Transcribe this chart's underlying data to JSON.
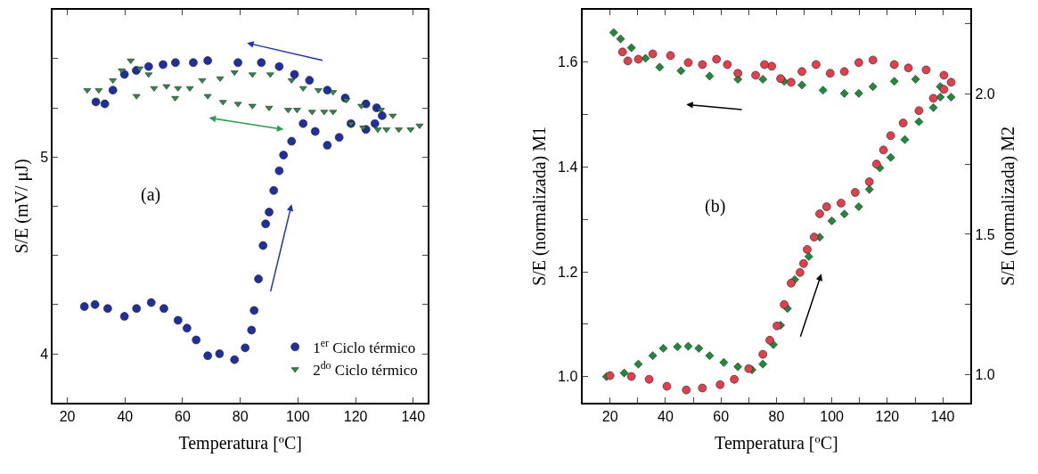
{
  "chart_data": [
    {
      "type": "scatter",
      "xlabel": "Temperatura [ºC]",
      "ylabel": "S/E (mV/ μJ)",
      "annotations": [
        "(a)"
      ],
      "xlim": [
        15,
        145
      ],
      "xticks": [
        20,
        40,
        60,
        80,
        100,
        120,
        140
      ],
      "ylim": [
        3.75,
        5.75
      ],
      "yticks": [
        {
          "value": 4,
          "label": "4"
        },
        {
          "value": 4.25,
          "label": null
        },
        {
          "value": 4.5,
          "label": null
        },
        {
          "value": 4.75,
          "label": null
        },
        {
          "value": 5,
          "label": "5"
        },
        {
          "value": 5.25,
          "label": null
        },
        {
          "value": 5.5,
          "label": null
        }
      ],
      "legend": "bottom right",
      "series": [
        {
          "name": "1$^{er}$ Ciclo térmico",
          "color": "#1f2f9f",
          "marker": "circle",
          "x": [
            25.9,
            29.6,
            34.0,
            39.8,
            44.0,
            49.1,
            53.5,
            58.4,
            61.5,
            64.7,
            68.7,
            72.8,
            78.0,
            81.7,
            83.9,
            84.8,
            86.3,
            87.9,
            88.8,
            90.0,
            91.6,
            93.5,
            95.0,
            97.8,
            101.8,
            106.0,
            110.2,
            114.3,
            118.4,
            123.6,
            126.7,
            129.2,
            127.3,
            123.6,
            116.4,
            110.2,
            104.0,
            98.8,
            93.5,
            87.3,
            79.2,
            68.7,
            63.7,
            57.5,
            53.2,
            48.2,
            43.9,
            39.8,
            35.8,
            33.0,
            29.9
          ],
          "values": [
            4.24,
            4.25,
            4.23,
            4.19,
            4.23,
            4.26,
            4.23,
            4.17,
            4.13,
            4.07,
            3.99,
            4.0,
            3.97,
            4.03,
            4.12,
            4.22,
            4.38,
            4.55,
            4.66,
            4.72,
            4.83,
            4.93,
            5.01,
            5.08,
            5.17,
            5.13,
            5.06,
            5.1,
            5.17,
            5.14,
            5.17,
            5.21,
            5.25,
            5.27,
            5.3,
            5.34,
            5.39,
            5.42,
            5.46,
            5.48,
            5.48,
            5.49,
            5.48,
            5.48,
            5.47,
            5.46,
            5.44,
            5.42,
            5.34,
            5.27,
            5.28
          ]
        },
        {
          "name": "2$^{do}$ Ciclo térmico",
          "color": "#2e8b4a",
          "marker": "triangle",
          "x": [
            26.9,
            30.9,
            35.8,
            38.9,
            42.0,
            45.1,
            48.2,
            50.1,
            54.4,
            58.4,
            62.5,
            66.8,
            73.0,
            78.0,
            84.2,
            90.4,
            97.8,
            101.8,
            107.1,
            112.2,
            116.8,
            122.0,
            128.8,
            132.9,
            142.2,
            139.1,
            135.0,
            130.7,
            127.7,
            122.6,
            118.4,
            112.2,
            109.1,
            104.9,
            99.7,
            96.6,
            90.0,
            84.2,
            79.2,
            74.0,
            68.7,
            57.4,
            44.0
          ],
          "values": [
            5.34,
            5.34,
            5.39,
            5.44,
            5.49,
            5.45,
            5.42,
            5.35,
            5.36,
            5.35,
            5.35,
            5.39,
            5.4,
            5.43,
            5.42,
            5.42,
            5.39,
            5.35,
            5.34,
            5.33,
            5.29,
            5.26,
            5.24,
            5.21,
            5.16,
            5.14,
            5.14,
            5.14,
            5.14,
            5.15,
            5.17,
            5.23,
            5.23,
            5.23,
            5.24,
            5.24,
            5.25,
            5.26,
            5.27,
            5.28,
            5.31,
            5.3,
            5.31
          ]
        }
      ]
    },
    {
      "type": "scatter",
      "xlabel": "Temperatura [ºC]",
      "ylabel": "S/E (normalizada) M1",
      "y2label": "S/E (normalizada) M2",
      "annotations": [
        "(b)"
      ],
      "xlim": [
        10,
        150
      ],
      "xticks": [
        {
          "value": 20,
          "label": "20"
        },
        {
          "value": 30,
          "label": null
        },
        {
          "value": 40,
          "label": "40"
        },
        {
          "value": 50,
          "label": null
        },
        {
          "value": 60,
          "label": "60"
        },
        {
          "value": 70,
          "label": null
        },
        {
          "value": 80,
          "label": "80"
        },
        {
          "value": 90,
          "label": null
        },
        {
          "value": 100,
          "label": "100"
        },
        {
          "value": 110,
          "label": null
        },
        {
          "value": 120,
          "label": "120"
        },
        {
          "value": 130,
          "label": null
        },
        {
          "value": 140,
          "label": "140"
        }
      ],
      "ylim": [
        0.95,
        1.7
      ],
      "yticks": [
        {
          "value": 1.0,
          "label": "1.0"
        },
        {
          "value": 1.1,
          "label": null
        },
        {
          "value": 1.2,
          "label": "1.2"
        },
        {
          "value": 1.3,
          "label": null
        },
        {
          "value": 1.4,
          "label": "1.4"
        },
        {
          "value": 1.5,
          "label": null
        },
        {
          "value": 1.6,
          "label": "1.6"
        }
      ],
      "y2lim": [
        0.9,
        2.3
      ],
      "y2ticks": [
        {
          "value": 1.0,
          "label": "1.0"
        },
        {
          "value": 1.25,
          "label": null
        },
        {
          "value": 1.5,
          "label": "1.5"
        },
        {
          "value": 1.75,
          "label": null
        },
        {
          "value": 2.0,
          "label": "2.0"
        },
        {
          "value": 2.25,
          "label": null
        }
      ],
      "legend": false,
      "series": [
        {
          "color": "#1f8a3c",
          "marker": "diamond",
          "x": [
            18.7,
            25.1,
            30.2,
            35.4,
            39.2,
            44.3,
            48.2,
            52.0,
            55.9,
            61.0,
            66.1,
            71.2,
            75.1,
            78.9,
            81.5,
            84.0,
            86.6,
            91.7,
            95.6,
            100.0,
            104.5,
            109.7,
            113.5,
            117.3,
            121.2,
            126.3,
            131.4,
            136.6,
            139.1,
            143.0,
            139.1,
            130.2,
            122.5,
            114.8,
            109.7,
            104.5,
            96.8,
            89.2,
            82.8,
            75.1,
            66.1,
            55.9,
            45.6,
            37.9,
            32.8,
            27.7,
            23.8,
            21.3
          ],
          "values": [
            1.0,
            1.007,
            1.024,
            1.04,
            1.054,
            1.057,
            1.058,
            1.054,
            1.04,
            1.027,
            1.019,
            1.013,
            1.024,
            1.061,
            1.098,
            1.13,
            1.185,
            1.229,
            1.266,
            1.297,
            1.31,
            1.324,
            1.357,
            1.398,
            1.418,
            1.452,
            1.486,
            1.513,
            1.533,
            1.533,
            1.553,
            1.567,
            1.563,
            1.553,
            1.54,
            1.54,
            1.546,
            1.556,
            1.563,
            1.567,
            1.567,
            1.573,
            1.583,
            1.59,
            1.607,
            1.627,
            1.644,
            1.656
          ]
        },
        {
          "color": "#e0404e",
          "marker": "circle",
          "axis": "y2",
          "x": [
            20.0,
            27.7,
            34.1,
            40.5,
            47.5,
            53.3,
            59.7,
            64.8,
            70.0,
            75.1,
            77.6,
            80.2,
            82.8,
            85.3,
            88.5,
            89.8,
            91.1,
            93.6,
            95.6,
            98.1,
            103.3,
            108.4,
            113.5,
            116.1,
            118.6,
            121.2,
            125.7,
            131.4,
            136.6,
            140.4,
            143.0,
            140.4,
            134.0,
            127.6,
            122.5,
            114.8,
            109.7,
            104.5,
            99.4,
            94.3,
            89.2,
            85.3,
            81.5,
            78.3,
            75.7,
            72.5,
            66.1,
            62.3,
            58.4,
            53.3,
            48.2,
            41.8,
            35.4,
            30.2,
            26.4,
            24.5
          ],
          "values": [
            0.997,
            0.994,
            0.984,
            0.959,
            0.946,
            0.953,
            0.965,
            0.984,
            1.022,
            1.073,
            1.123,
            1.174,
            1.25,
            1.326,
            1.364,
            1.396,
            1.446,
            1.49,
            1.573,
            1.598,
            1.611,
            1.649,
            1.687,
            1.75,
            1.8,
            1.851,
            1.896,
            1.94,
            1.984,
            2.016,
            2.041,
            2.066,
            2.085,
            2.092,
            2.104,
            2.12,
            2.111,
            2.079,
            2.073,
            2.104,
            2.079,
            2.041,
            2.054,
            2.098,
            2.104,
            2.066,
            2.073,
            2.104,
            2.123,
            2.104,
            2.111,
            2.136,
            2.142,
            2.123,
            2.117,
            2.149
          ]
        }
      ]
    }
  ]
}
